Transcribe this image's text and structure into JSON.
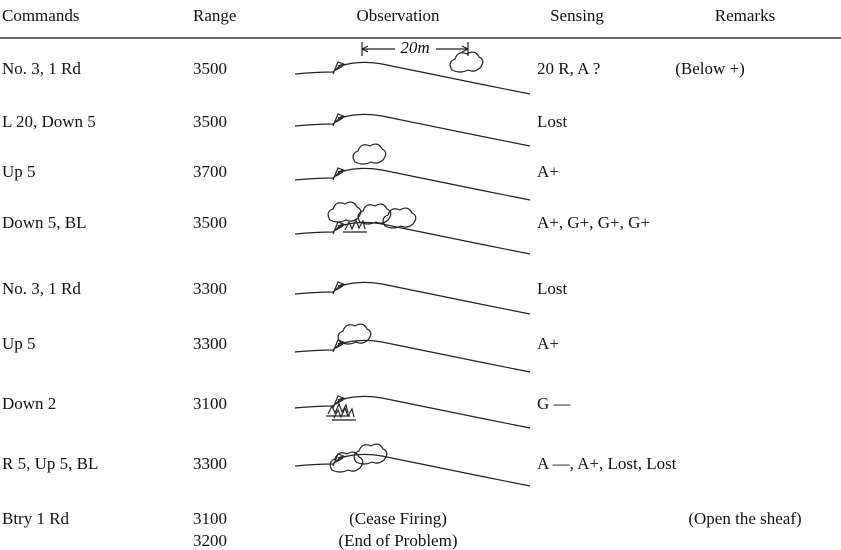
{
  "table": {
    "header": [
      "Commands",
      "Range",
      "Observation",
      "Sensing",
      "Remarks"
    ],
    "sketch_label": "20m",
    "rows": [
      {
        "command": "No. 3, 1 Rd",
        "range": "3500",
        "sensing": "20 R, A ?",
        "remarks": "(Below +)"
      },
      {
        "command": "L 20, Down 5",
        "range": "3500",
        "sensing": "Lost"
      },
      {
        "command": "Up 5",
        "range": "3700",
        "sensing": "A+"
      },
      {
        "command": "Down 5, BL",
        "range": "3500",
        "sensing": "A+, G+, G+, G+"
      },
      {
        "command": "No. 3, 1 Rd",
        "range": "3300",
        "sensing": "Lost"
      },
      {
        "command": "Up 5",
        "range": "3300",
        "sensing": "A+"
      },
      {
        "command": "Down 2",
        "range": "3100",
        "sensing": "G —"
      },
      {
        "command": "R 5, Up 5, BL",
        "range": "3300",
        "sensing": "A —, A+, Lost, Lost"
      },
      {
        "command": "Btry 1 Rd",
        "range": [
          "3100",
          "3200"
        ],
        "observation": [
          "(Cease Firing)",
          "(End of Problem)"
        ],
        "remarks": "(Open the sheaf)"
      }
    ]
  }
}
